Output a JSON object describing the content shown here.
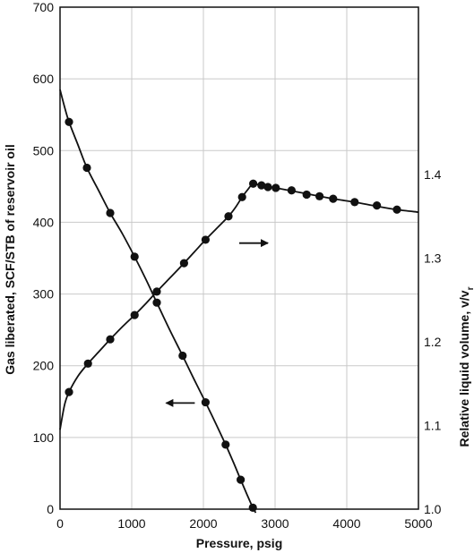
{
  "chart_data": {
    "type": "scatter",
    "xlabel": "Pressure, psig",
    "xlim": [
      0,
      5000
    ],
    "x_ticks": [
      "0",
      "1000",
      "2000",
      "3000",
      "4000",
      "5000"
    ],
    "y_left": {
      "label": "Gas liberated, SCF/STB of reservoir oil",
      "lim": [
        0,
        700
      ],
      "ticks": [
        "0",
        "100",
        "200",
        "300",
        "400",
        "500",
        "600",
        "700"
      ]
    },
    "y_right": {
      "label": "Relative liquid volume, v/v",
      "label_subscript": "r",
      "lim": [
        1.0,
        1.6
      ],
      "ticks": [
        "1.0",
        "1.1",
        "1.2",
        "1.3",
        "1.4"
      ]
    },
    "grid": true,
    "series": [
      {
        "axis": "left",
        "points": [
          [
            125,
            540
          ],
          [
            375,
            476
          ],
          [
            700,
            413
          ],
          [
            1040,
            352
          ],
          [
            1350,
            288
          ],
          [
            1710,
            214
          ],
          [
            2030,
            149
          ],
          [
            2310,
            90
          ],
          [
            2520,
            41
          ],
          [
            2690,
            2
          ]
        ],
        "curve": [
          [
            0,
            585
          ],
          [
            60,
            562
          ],
          [
            125,
            540
          ],
          [
            250,
            508
          ],
          [
            375,
            476
          ],
          [
            540,
            444
          ],
          [
            700,
            413
          ],
          [
            870,
            384
          ],
          [
            1040,
            352
          ],
          [
            1200,
            320
          ],
          [
            1350,
            288
          ],
          [
            1530,
            250
          ],
          [
            1710,
            214
          ],
          [
            1870,
            181
          ],
          [
            2030,
            149
          ],
          [
            2170,
            120
          ],
          [
            2310,
            90
          ],
          [
            2420,
            65
          ],
          [
            2520,
            41
          ],
          [
            2610,
            20
          ],
          [
            2690,
            2
          ],
          [
            2730,
            -5
          ]
        ]
      },
      {
        "axis": "right",
        "points": [
          [
            125,
            1.14
          ],
          [
            390,
            1.174
          ],
          [
            700,
            1.203
          ],
          [
            1040,
            1.232
          ],
          [
            1350,
            1.26
          ],
          [
            1730,
            1.294
          ],
          [
            2030,
            1.322
          ],
          [
            2350,
            1.35
          ],
          [
            2540,
            1.373
          ],
          [
            2695,
            1.389
          ],
          [
            2810,
            1.387
          ],
          [
            2900,
            1.385
          ],
          [
            3010,
            1.384
          ],
          [
            3230,
            1.381
          ],
          [
            3440,
            1.376
          ],
          [
            3620,
            1.374
          ],
          [
            3810,
            1.371
          ],
          [
            4110,
            1.367
          ],
          [
            4420,
            1.363
          ],
          [
            4700,
            1.358
          ]
        ],
        "curve": [
          [
            0,
            1.095
          ],
          [
            30,
            1.11
          ],
          [
            70,
            1.127
          ],
          [
            125,
            1.14
          ],
          [
            250,
            1.159
          ],
          [
            390,
            1.174
          ],
          [
            550,
            1.189
          ],
          [
            700,
            1.203
          ],
          [
            870,
            1.218
          ],
          [
            1040,
            1.232
          ],
          [
            1200,
            1.246
          ],
          [
            1350,
            1.26
          ],
          [
            1540,
            1.277
          ],
          [
            1730,
            1.294
          ],
          [
            1880,
            1.308
          ],
          [
            2030,
            1.322
          ],
          [
            2190,
            1.336
          ],
          [
            2350,
            1.35
          ],
          [
            2450,
            1.361
          ],
          [
            2540,
            1.373
          ],
          [
            2620,
            1.382
          ],
          [
            2695,
            1.389
          ],
          [
            2800,
            1.387
          ],
          [
            3010,
            1.384
          ],
          [
            3440,
            1.377
          ],
          [
            3810,
            1.371
          ],
          [
            4110,
            1.367
          ],
          [
            4420,
            1.362
          ],
          [
            4700,
            1.358
          ],
          [
            5000,
            1.355
          ]
        ]
      }
    ],
    "annotations": [
      {
        "type": "arrow",
        "direction": "right",
        "at": [
          2500,
          1.318
        ],
        "length": 400
      },
      {
        "type": "arrow",
        "direction": "left",
        "at": [
          1880,
          148
        ],
        "length": 400
      }
    ]
  }
}
